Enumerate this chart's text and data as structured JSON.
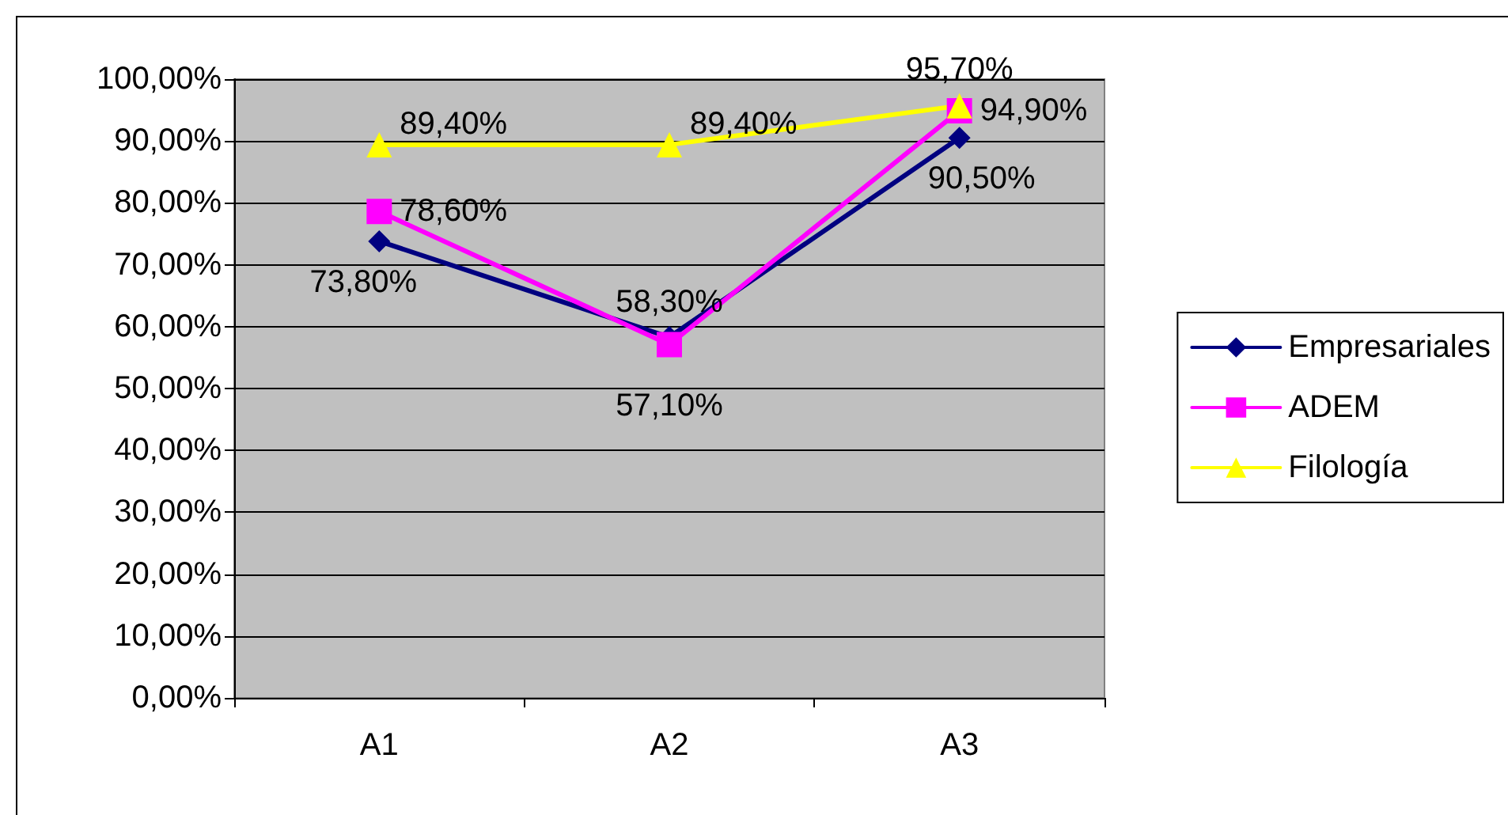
{
  "chart_data": {
    "type": "line",
    "categories": [
      "A1",
      "A2",
      "A3"
    ],
    "series": [
      {
        "name": "Empresariales",
        "color": "#000080",
        "marker": "diamond",
        "values": [
          73.8,
          58.3,
          90.5
        ],
        "value_labels": [
          "73,80%",
          "58,30%",
          "90,50%"
        ]
      },
      {
        "name": "ADEM",
        "color": "#ff00ff",
        "marker": "square",
        "values": [
          78.6,
          57.1,
          94.9
        ],
        "value_labels": [
          "78,60%",
          "57,10%",
          "94,90%"
        ]
      },
      {
        "name": "Filología",
        "color": "#ffff00",
        "marker": "triangle",
        "values": [
          89.4,
          89.4,
          95.7
        ],
        "value_labels": [
          "89,40%",
          "89,40%",
          "95,70%"
        ]
      }
    ],
    "ylim": [
      0,
      100
    ],
    "yticks": [
      {
        "value": 0,
        "label": "0,00%"
      },
      {
        "value": 10,
        "label": "10,00%"
      },
      {
        "value": 20,
        "label": "20,00%"
      },
      {
        "value": 30,
        "label": "30,00%"
      },
      {
        "value": 40,
        "label": "40,00%"
      },
      {
        "value": 50,
        "label": "50,00%"
      },
      {
        "value": 60,
        "label": "60,00%"
      },
      {
        "value": 70,
        "label": "70,00%"
      },
      {
        "value": 80,
        "label": "80,00%"
      },
      {
        "value": 90,
        "label": "90,00%"
      },
      {
        "value": 100,
        "label": "100,00%"
      }
    ],
    "grid": "y",
    "legend": "right"
  }
}
